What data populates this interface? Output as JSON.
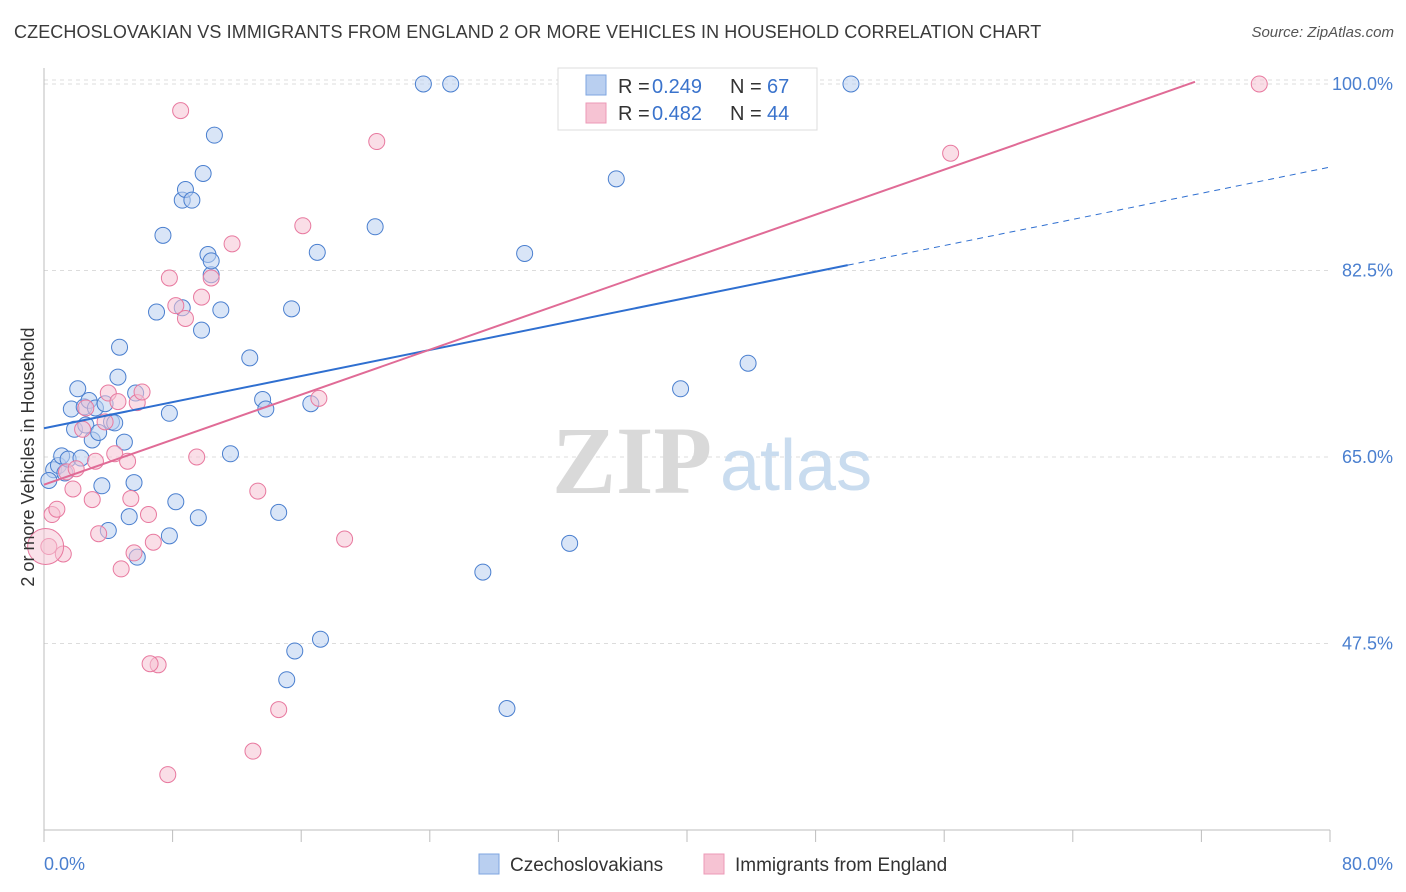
{
  "title": "CZECHOSLOVAKIAN VS IMMIGRANTS FROM ENGLAND 2 OR MORE VEHICLES IN HOUSEHOLD CORRELATION CHART",
  "source": "Source: ZipAtlas.com",
  "watermark": {
    "zip": "ZIP",
    "atlas": "atlas"
  },
  "colors": {
    "blue": "#4a7fcf",
    "blue_fill": "#b9cff0",
    "blue_line": "#2f6fd0",
    "pink": "#e8799f",
    "pink_fill": "#f6c3d3",
    "pink_line": "#e06b96",
    "grid": "#dcdcdc"
  },
  "legend": {
    "rows": [
      {
        "r_label": "R = ",
        "r_value": "0.249",
        "n_label": "N = ",
        "n_value": "67"
      },
      {
        "r_label": "R = ",
        "r_value": "0.482",
        "n_label": "N = ",
        "n_value": "44"
      }
    ]
  },
  "bottom_legend": [
    "Czechoslovakians",
    "Immigrants from England"
  ],
  "chart_data": {
    "type": "scatter",
    "title": "CZECHOSLOVAKIAN VS IMMIGRANTS FROM ENGLAND 2 OR MORE VEHICLES IN HOUSEHOLD CORRELATION CHART",
    "xlabel": "",
    "ylabel": "2 or more Vehicles in Household",
    "xlim": [
      0,
      80
    ],
    "ylim": [
      30,
      101.5
    ],
    "x_tick_labels": [
      "0.0%",
      "80.0%"
    ],
    "y_ticks": [
      47.5,
      65.0,
      82.5,
      100.0
    ],
    "y_tick_labels": [
      "47.5%",
      "65.0%",
      "82.5%",
      "100.0%"
    ],
    "grid": true,
    "legend_position": "top-center",
    "series": [
      {
        "name": "Czechoslovakians",
        "r": 0.249,
        "n": 67,
        "trend": {
          "x0": 0,
          "y0": 67.7,
          "x1": 50,
          "y1": 83.0,
          "dash_to_x": 80,
          "dash_to_y": 92.2
        },
        "points": [
          [
            0.6,
            63.8
          ],
          [
            0.9,
            64.2
          ],
          [
            1.1,
            65.1
          ],
          [
            1.3,
            63.5
          ],
          [
            1.5,
            64.8
          ],
          [
            1.7,
            69.5
          ],
          [
            1.9,
            67.6
          ],
          [
            2.1,
            71.4
          ],
          [
            2.3,
            64.9
          ],
          [
            2.5,
            69.7
          ],
          [
            2.6,
            68.0
          ],
          [
            2.8,
            70.3
          ],
          [
            3.0,
            66.6
          ],
          [
            3.2,
            69.6
          ],
          [
            3.4,
            67.3
          ],
          [
            3.6,
            62.3
          ],
          [
            3.8,
            70.0
          ],
          [
            4.0,
            58.1
          ],
          [
            4.2,
            68.3
          ],
          [
            4.4,
            68.2
          ],
          [
            4.6,
            72.5
          ],
          [
            4.7,
            75.3
          ],
          [
            5.0,
            66.4
          ],
          [
            5.3,
            59.4
          ],
          [
            5.6,
            62.6
          ],
          [
            5.8,
            55.6
          ],
          [
            5.7,
            71.0
          ],
          [
            7.0,
            78.6
          ],
          [
            7.4,
            85.8
          ],
          [
            7.8,
            69.1
          ],
          [
            7.8,
            57.6
          ],
          [
            8.2,
            60.8
          ],
          [
            8.6,
            79.0
          ],
          [
            8.6,
            89.1
          ],
          [
            8.8,
            90.1
          ],
          [
            9.2,
            89.1
          ],
          [
            9.6,
            59.3
          ],
          [
            9.8,
            76.9
          ],
          [
            9.9,
            91.6
          ],
          [
            10.2,
            84.0
          ],
          [
            10.4,
            82.1
          ],
          [
            10.4,
            83.4
          ],
          [
            10.6,
            95.2
          ],
          [
            11.0,
            78.8
          ],
          [
            11.6,
            65.3
          ],
          [
            12.8,
            74.3
          ],
          [
            13.6,
            70.4
          ],
          [
            13.8,
            69.5
          ],
          [
            14.6,
            59.8
          ],
          [
            15.1,
            44.1
          ],
          [
            15.4,
            78.9
          ],
          [
            15.6,
            46.8
          ],
          [
            16.6,
            70.0
          ],
          [
            17.0,
            84.2
          ],
          [
            17.2,
            47.9
          ],
          [
            20.6,
            86.6
          ],
          [
            23.6,
            100.0
          ],
          [
            25.3,
            100.0
          ],
          [
            27.3,
            54.2
          ],
          [
            28.8,
            41.4
          ],
          [
            29.9,
            84.1
          ],
          [
            32.7,
            56.9
          ],
          [
            35.6,
            91.1
          ],
          [
            39.6,
            71.4
          ],
          [
            43.8,
            73.8
          ],
          [
            50.2,
            100.0
          ],
          [
            0.3,
            62.8
          ]
        ]
      },
      {
        "name": "Immigrants from England",
        "r": 0.482,
        "n": 44,
        "trend": {
          "x0": 0,
          "y0": 62.4,
          "x1": 71.6,
          "y1": 100.2
        },
        "points": [
          [
            0.3,
            56.6
          ],
          [
            0.5,
            59.6
          ],
          [
            0.8,
            60.1
          ],
          [
            1.2,
            55.9
          ],
          [
            1.4,
            63.6
          ],
          [
            1.8,
            62.0
          ],
          [
            2.0,
            63.9
          ],
          [
            2.4,
            67.6
          ],
          [
            2.6,
            69.6
          ],
          [
            3.0,
            61.0
          ],
          [
            3.2,
            64.6
          ],
          [
            3.4,
            57.8
          ],
          [
            3.8,
            68.3
          ],
          [
            4.0,
            71.0
          ],
          [
            4.4,
            65.3
          ],
          [
            4.6,
            70.2
          ],
          [
            4.8,
            54.5
          ],
          [
            5.2,
            64.6
          ],
          [
            5.4,
            61.1
          ],
          [
            5.6,
            56.0
          ],
          [
            5.8,
            70.1
          ],
          [
            6.1,
            71.1
          ],
          [
            6.5,
            59.6
          ],
          [
            6.8,
            57.0
          ],
          [
            7.1,
            45.5
          ],
          [
            7.7,
            35.2
          ],
          [
            7.8,
            81.8
          ],
          [
            8.2,
            79.2
          ],
          [
            8.5,
            97.5
          ],
          [
            8.8,
            78.0
          ],
          [
            9.5,
            65.0
          ],
          [
            9.8,
            80.0
          ],
          [
            10.4,
            81.8
          ],
          [
            11.7,
            85.0
          ],
          [
            13.0,
            37.4
          ],
          [
            13.3,
            61.8
          ],
          [
            14.6,
            41.3
          ],
          [
            16.1,
            86.7
          ],
          [
            17.1,
            70.5
          ],
          [
            18.7,
            57.3
          ],
          [
            20.7,
            94.6
          ],
          [
            56.4,
            93.5
          ],
          [
            75.6,
            100.0
          ],
          [
            6.6,
            45.6
          ]
        ]
      }
    ]
  }
}
